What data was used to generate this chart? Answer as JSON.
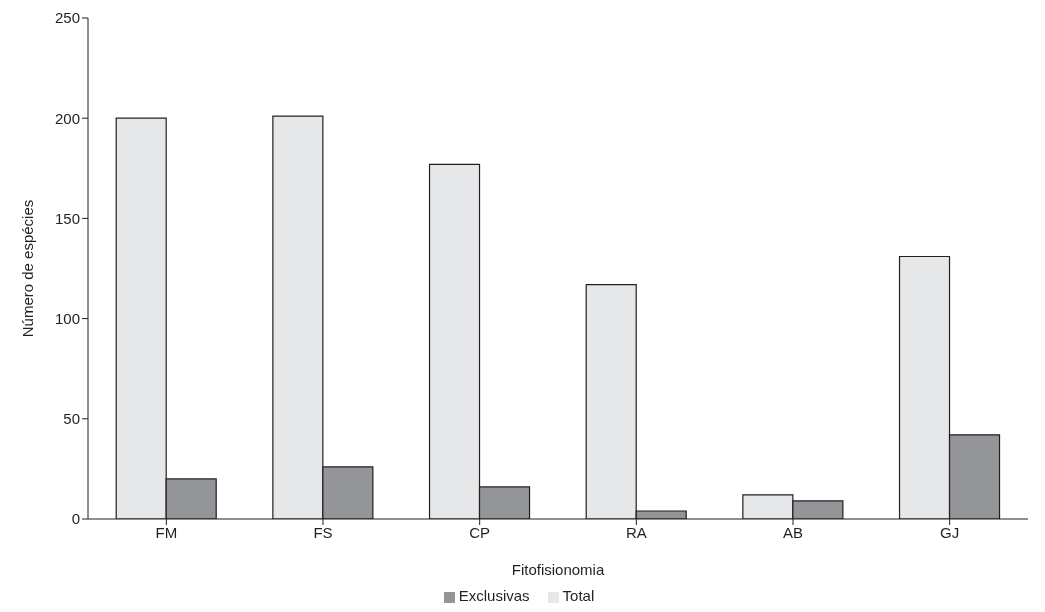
{
  "chart_data": {
    "type": "bar",
    "xlabel": "Fitofisionomia",
    "ylabel": "Número de espécies",
    "categories": [
      "FM",
      "FS",
      "CP",
      "RA",
      "AB",
      "GJ"
    ],
    "series": [
      {
        "name": "Total",
        "color": "#e6e7e8",
        "values": [
          200,
          201,
          177,
          117,
          12,
          131
        ]
      },
      {
        "name": "Exclusivas",
        "color": "#939598",
        "values": [
          20,
          26,
          16,
          4,
          9,
          42
        ]
      }
    ],
    "ylim": [
      0,
      250
    ],
    "yticks": [
      0,
      50,
      100,
      150,
      200,
      250
    ],
    "grid": false,
    "legend": "bottom"
  }
}
